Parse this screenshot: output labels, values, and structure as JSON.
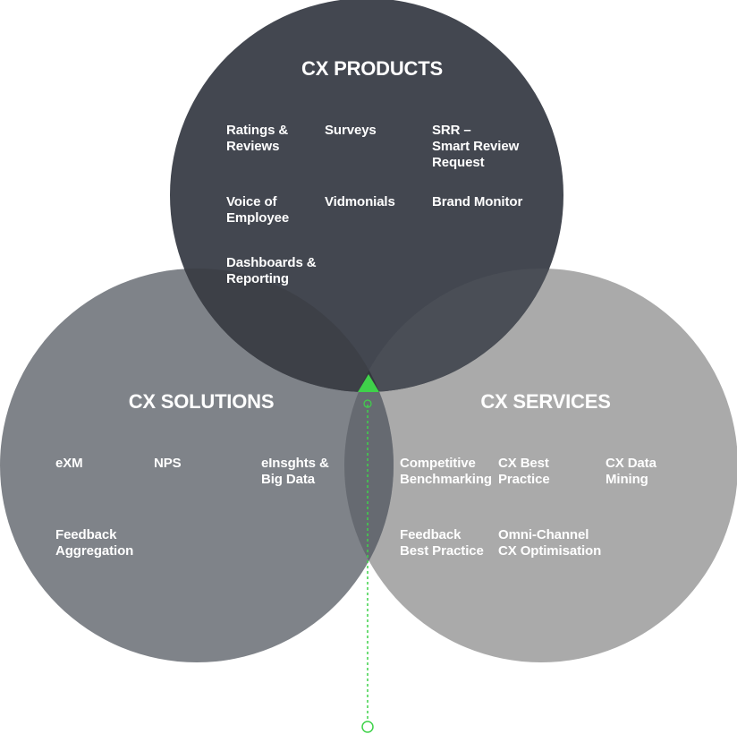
{
  "colors": {
    "products": "#434750",
    "solutions": "#7f8389",
    "services": "#aaaaaa",
    "accent": "#3fd24a",
    "text": "#ffffff"
  },
  "circles": {
    "products": {
      "title": "CX PRODUCTS",
      "items": [
        "Ratings &\nReviews",
        "Surveys",
        "SRR –\nSmart Review\nRequest",
        "Voice of\nEmployee",
        "Vidmonials",
        "Brand Monitor",
        "Dashboards &\nReporting"
      ]
    },
    "solutions": {
      "title": "CX SOLUTIONS",
      "items": [
        "eXM",
        "NPS",
        "eInsghts &\nBig Data",
        "Feedback\nAggregation"
      ]
    },
    "services": {
      "title": "CX SERVICES",
      "items": [
        "Competitive\nBenchmarking",
        "CX Best\nPractice",
        "CX Data\nMining",
        "Feedback\nBest Practice",
        "Omni-Channel\nCX Optimisation"
      ]
    }
  }
}
